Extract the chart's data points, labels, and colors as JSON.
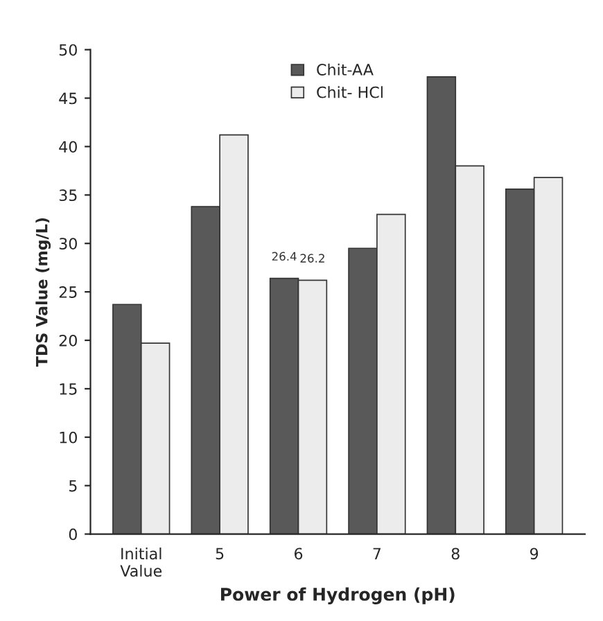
{
  "chart_data": {
    "type": "bar",
    "xlabel": "Power of Hydrogen (pH)",
    "ylabel": "TDS Value (mg/L)",
    "categories": [
      "Initial\nValue",
      "5",
      "6",
      "7",
      "8",
      "9"
    ],
    "series": [
      {
        "name": "Chit-AA",
        "color": "#595959",
        "values": [
          23.7,
          33.8,
          26.4,
          29.5,
          47.2,
          35.6
        ],
        "value_labels": [
          null,
          null,
          "26.4",
          null,
          null,
          null
        ]
      },
      {
        "name": "Chit- HCl",
        "color": "#ececec",
        "values": [
          19.7,
          41.2,
          26.2,
          33.0,
          38.0,
          36.8
        ],
        "value_labels": [
          null,
          null,
          "26.2",
          null,
          null,
          null
        ]
      }
    ],
    "ylim": [
      0,
      50
    ],
    "yticks": [
      0,
      5,
      10,
      15,
      20,
      25,
      30,
      35,
      40,
      45,
      50
    ],
    "grid": false,
    "legend": "top"
  }
}
